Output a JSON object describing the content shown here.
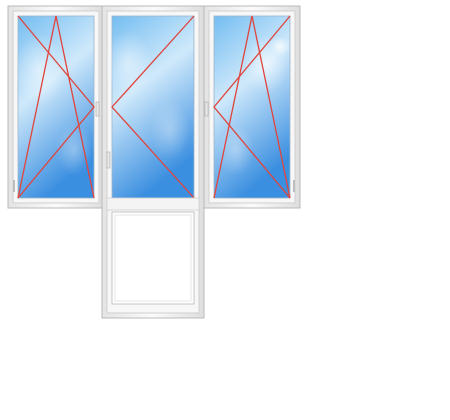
{
  "illustration": {
    "subject": "balcony-block",
    "opening_types": [
      "tilt-and-turn",
      "turn",
      "tilt-and-turn"
    ]
  },
  "colors": {
    "frame": "#f7f7f7",
    "frame_shadow": "#cfcfcf",
    "frame_edge": "#b9b9b9",
    "glass_light": "#cfe9fb",
    "glass_mid": "#74bdf1",
    "glass_dark": "#3b8fe0",
    "opening_lines": "#e0443c",
    "door_panel": "#ffffff"
  }
}
